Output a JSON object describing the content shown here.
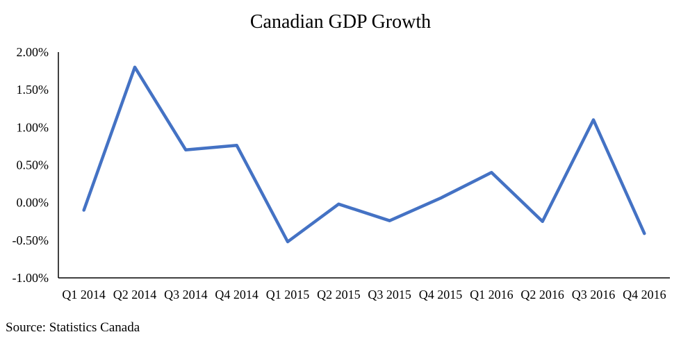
{
  "chart_data": {
    "type": "line",
    "title": "Canadian GDP Growth",
    "source": "Source: Statistics Canada",
    "categories": [
      "Q1 2014",
      "Q2 2014",
      "Q3 2014",
      "Q4 2014",
      "Q1 2015",
      "Q2 2015",
      "Q3 2015",
      "Q4 2015",
      "Q1 2016",
      "Q2 2016",
      "Q3 2016",
      "Q4 2016"
    ],
    "series": [
      {
        "values": [
          -0.1,
          1.8,
          0.7,
          0.76,
          -0.52,
          -0.02,
          -0.24,
          0.06,
          0.4,
          -0.25,
          1.1,
          -0.41
        ],
        "color": "#4472C4"
      }
    ],
    "ylim": [
      -1.0,
      2.0
    ],
    "yticks": [
      2.0,
      1.5,
      1.0,
      0.5,
      0.0,
      -0.5,
      -1.0
    ],
    "ytick_labels": [
      "2.00%",
      "1.50%",
      "1.00%",
      "0.50%",
      "0.00%",
      "-0.50%",
      "-1.00%"
    ],
    "xlabel": "",
    "ylabel": "",
    "grid": false,
    "legend": "none"
  }
}
